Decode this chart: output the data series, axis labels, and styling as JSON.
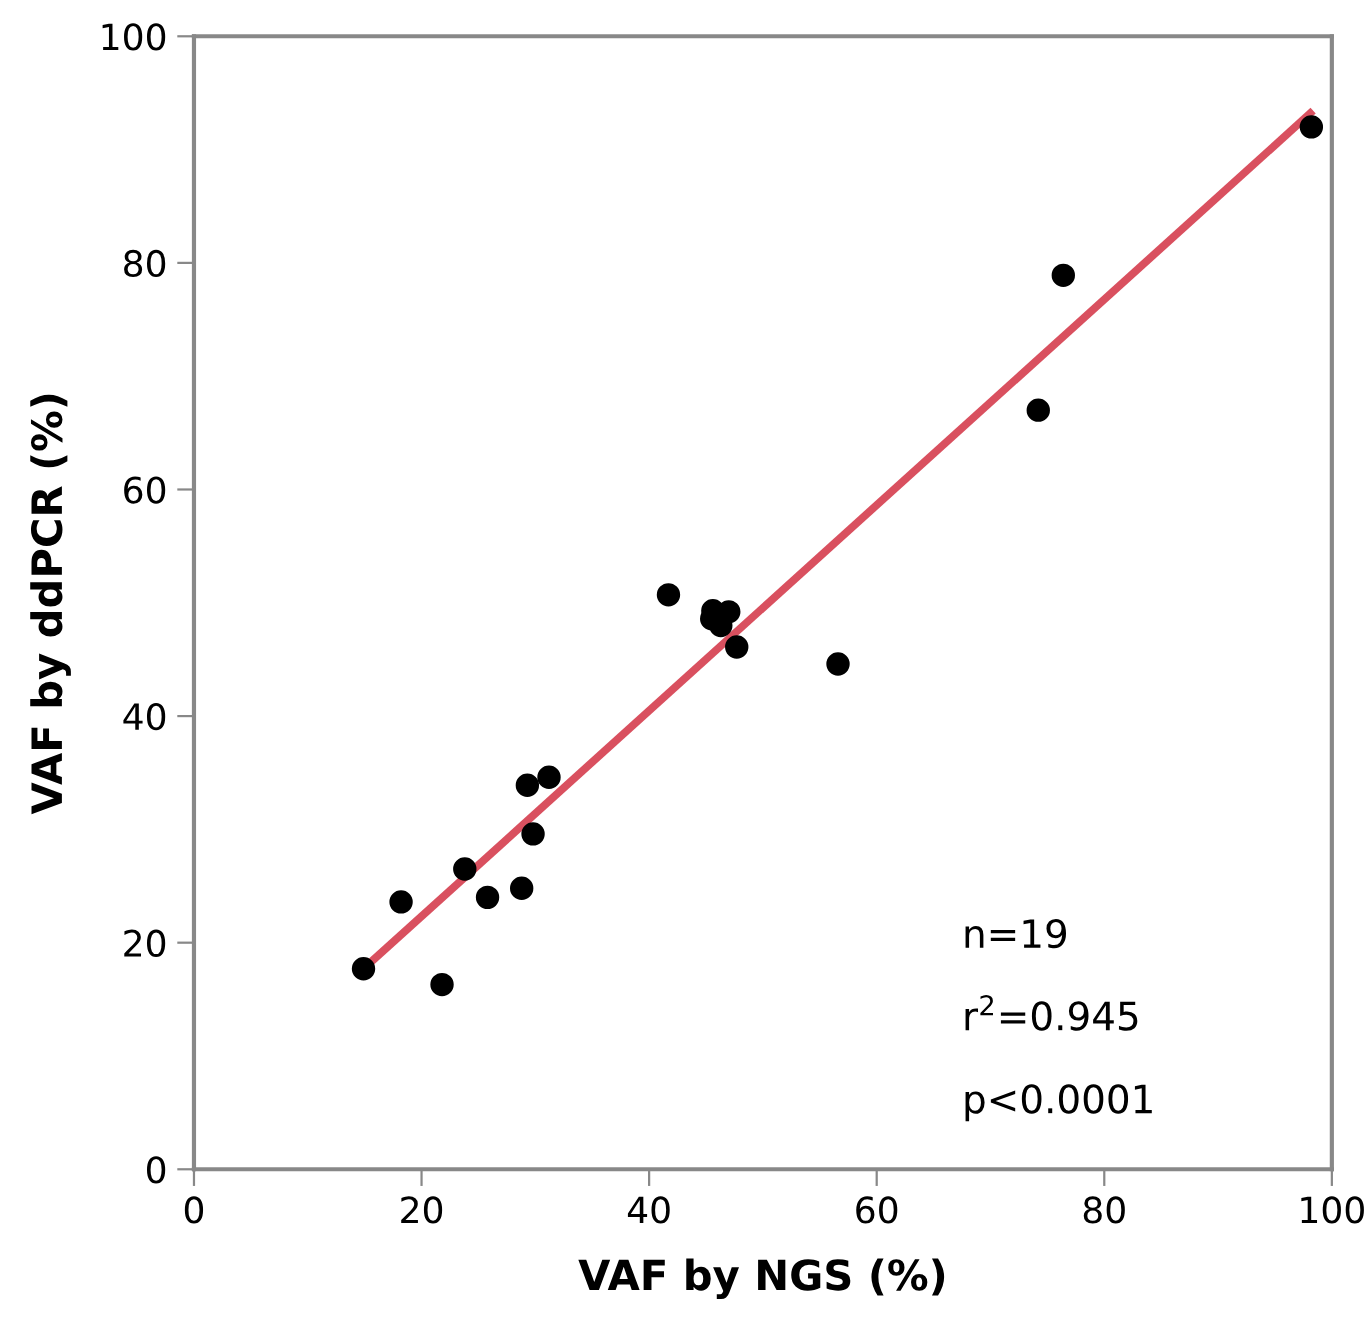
{
  "chart_data": {
    "type": "scatter",
    "xlabel": "VAF by NGS (%)",
    "ylabel": "VAF by ddPCR (%)",
    "xlim": [
      0,
      100
    ],
    "ylim": [
      0,
      100
    ],
    "xticks": [
      0,
      20,
      40,
      60,
      80,
      100
    ],
    "yticks": [
      0,
      20,
      40,
      60,
      80,
      100
    ],
    "grid": false,
    "series": [
      {
        "marker": "circle",
        "color": "#000000",
        "x": [
          14.9,
          21.8,
          18.2,
          23.8,
          25.8,
          28.8,
          29.8,
          29.3,
          31.2,
          41.7,
          45.6,
          47.0,
          45.5,
          46.3,
          47.7,
          56.6,
          76.4,
          74.2,
          98.2
        ],
        "values": [
          17.7,
          16.3,
          23.6,
          26.5,
          24.0,
          24.8,
          29.6,
          33.9,
          34.6,
          50.7,
          49.3,
          49.2,
          48.6,
          48.0,
          46.1,
          44.6,
          78.9,
          67.0,
          92.0
        ]
      },
      {
        "type": "line",
        "color": "#d9505f",
        "x": [
          14.9,
          98.1
        ],
        "values": [
          17.7,
          93.2
        ]
      }
    ],
    "annotations": [
      "n=19",
      "r$^{2}$=0.945",
      "p<0.0001"
    ]
  }
}
